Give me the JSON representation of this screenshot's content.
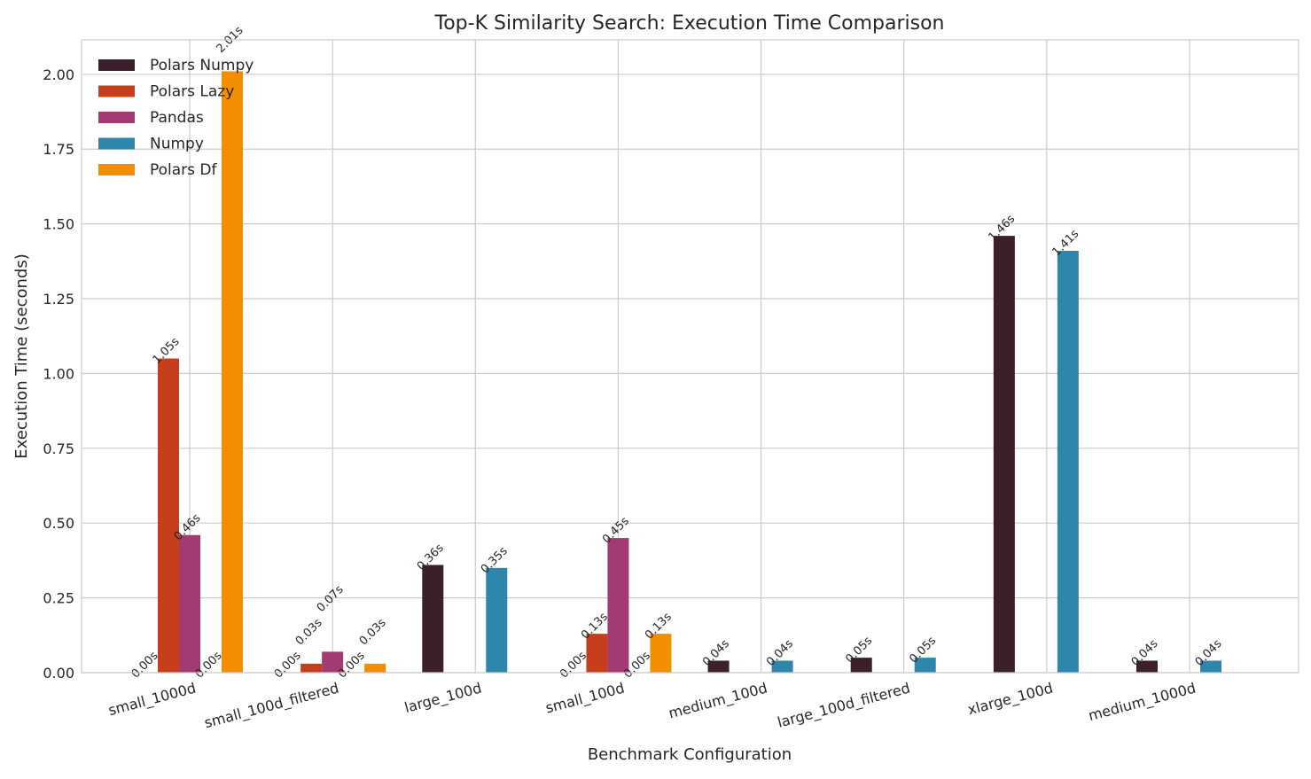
{
  "chart_data": {
    "type": "bar",
    "title": "Top-K Similarity Search: Execution Time Comparison",
    "xlabel": "Benchmark Configuration",
    "ylabel": "Execution Time (seconds)",
    "ylim": [
      0,
      2.115
    ],
    "yticks": [
      0,
      0.25,
      0.5,
      0.75,
      1.0,
      1.25,
      1.5,
      1.75,
      2.0
    ],
    "ytick_labels": [
      "0.00",
      "0.25",
      "0.50",
      "0.75",
      "1.00",
      "1.25",
      "1.50",
      "1.75",
      "2.00"
    ],
    "grid": true,
    "legend_position": "top-left",
    "categories": [
      "small_1000d",
      "small_100d_filtered",
      "large_100d",
      "small_100d",
      "medium_100d",
      "large_100d_filtered",
      "xlarge_100d",
      "medium_1000d"
    ],
    "series": [
      {
        "name": "Polars Numpy",
        "color": "#3b1f2b",
        "values": [
          0.0,
          0.0,
          0.36,
          0.0,
          0.04,
          0.05,
          1.46,
          0.04
        ],
        "labels": [
          "0.00s",
          "0.00s",
          "0.36s",
          "0.00s",
          "0.04s",
          "0.05s",
          "1.46s",
          "0.04s"
        ]
      },
      {
        "name": "Polars Lazy",
        "color": "#c73e1d",
        "values": [
          1.05,
          0.03,
          null,
          0.13,
          null,
          null,
          null,
          null
        ],
        "labels": [
          "1.05s",
          "0.03s",
          null,
          "0.13s",
          null,
          null,
          null,
          null
        ]
      },
      {
        "name": "Pandas",
        "color": "#a23b72",
        "values": [
          0.46,
          0.07,
          null,
          0.45,
          null,
          null,
          null,
          null
        ],
        "labels": [
          "0.46s",
          "0.07s",
          null,
          "0.45s",
          null,
          null,
          null,
          null
        ]
      },
      {
        "name": "Numpy",
        "color": "#2e86ab",
        "values": [
          0.0,
          0.0,
          0.35,
          0.0,
          0.04,
          0.05,
          1.41,
          0.04
        ],
        "labels": [
          "0.00s",
          "0.00s",
          "0.35s",
          "0.00s",
          "0.04s",
          "0.05s",
          "1.41s",
          "0.04s"
        ]
      },
      {
        "name": "Polars Df",
        "color": "#f18f01",
        "values": [
          2.01,
          0.03,
          null,
          0.13,
          null,
          null,
          null,
          null
        ],
        "labels": [
          "2.01s",
          "0.03s",
          null,
          "0.13s",
          null,
          null,
          null,
          null
        ]
      }
    ]
  }
}
